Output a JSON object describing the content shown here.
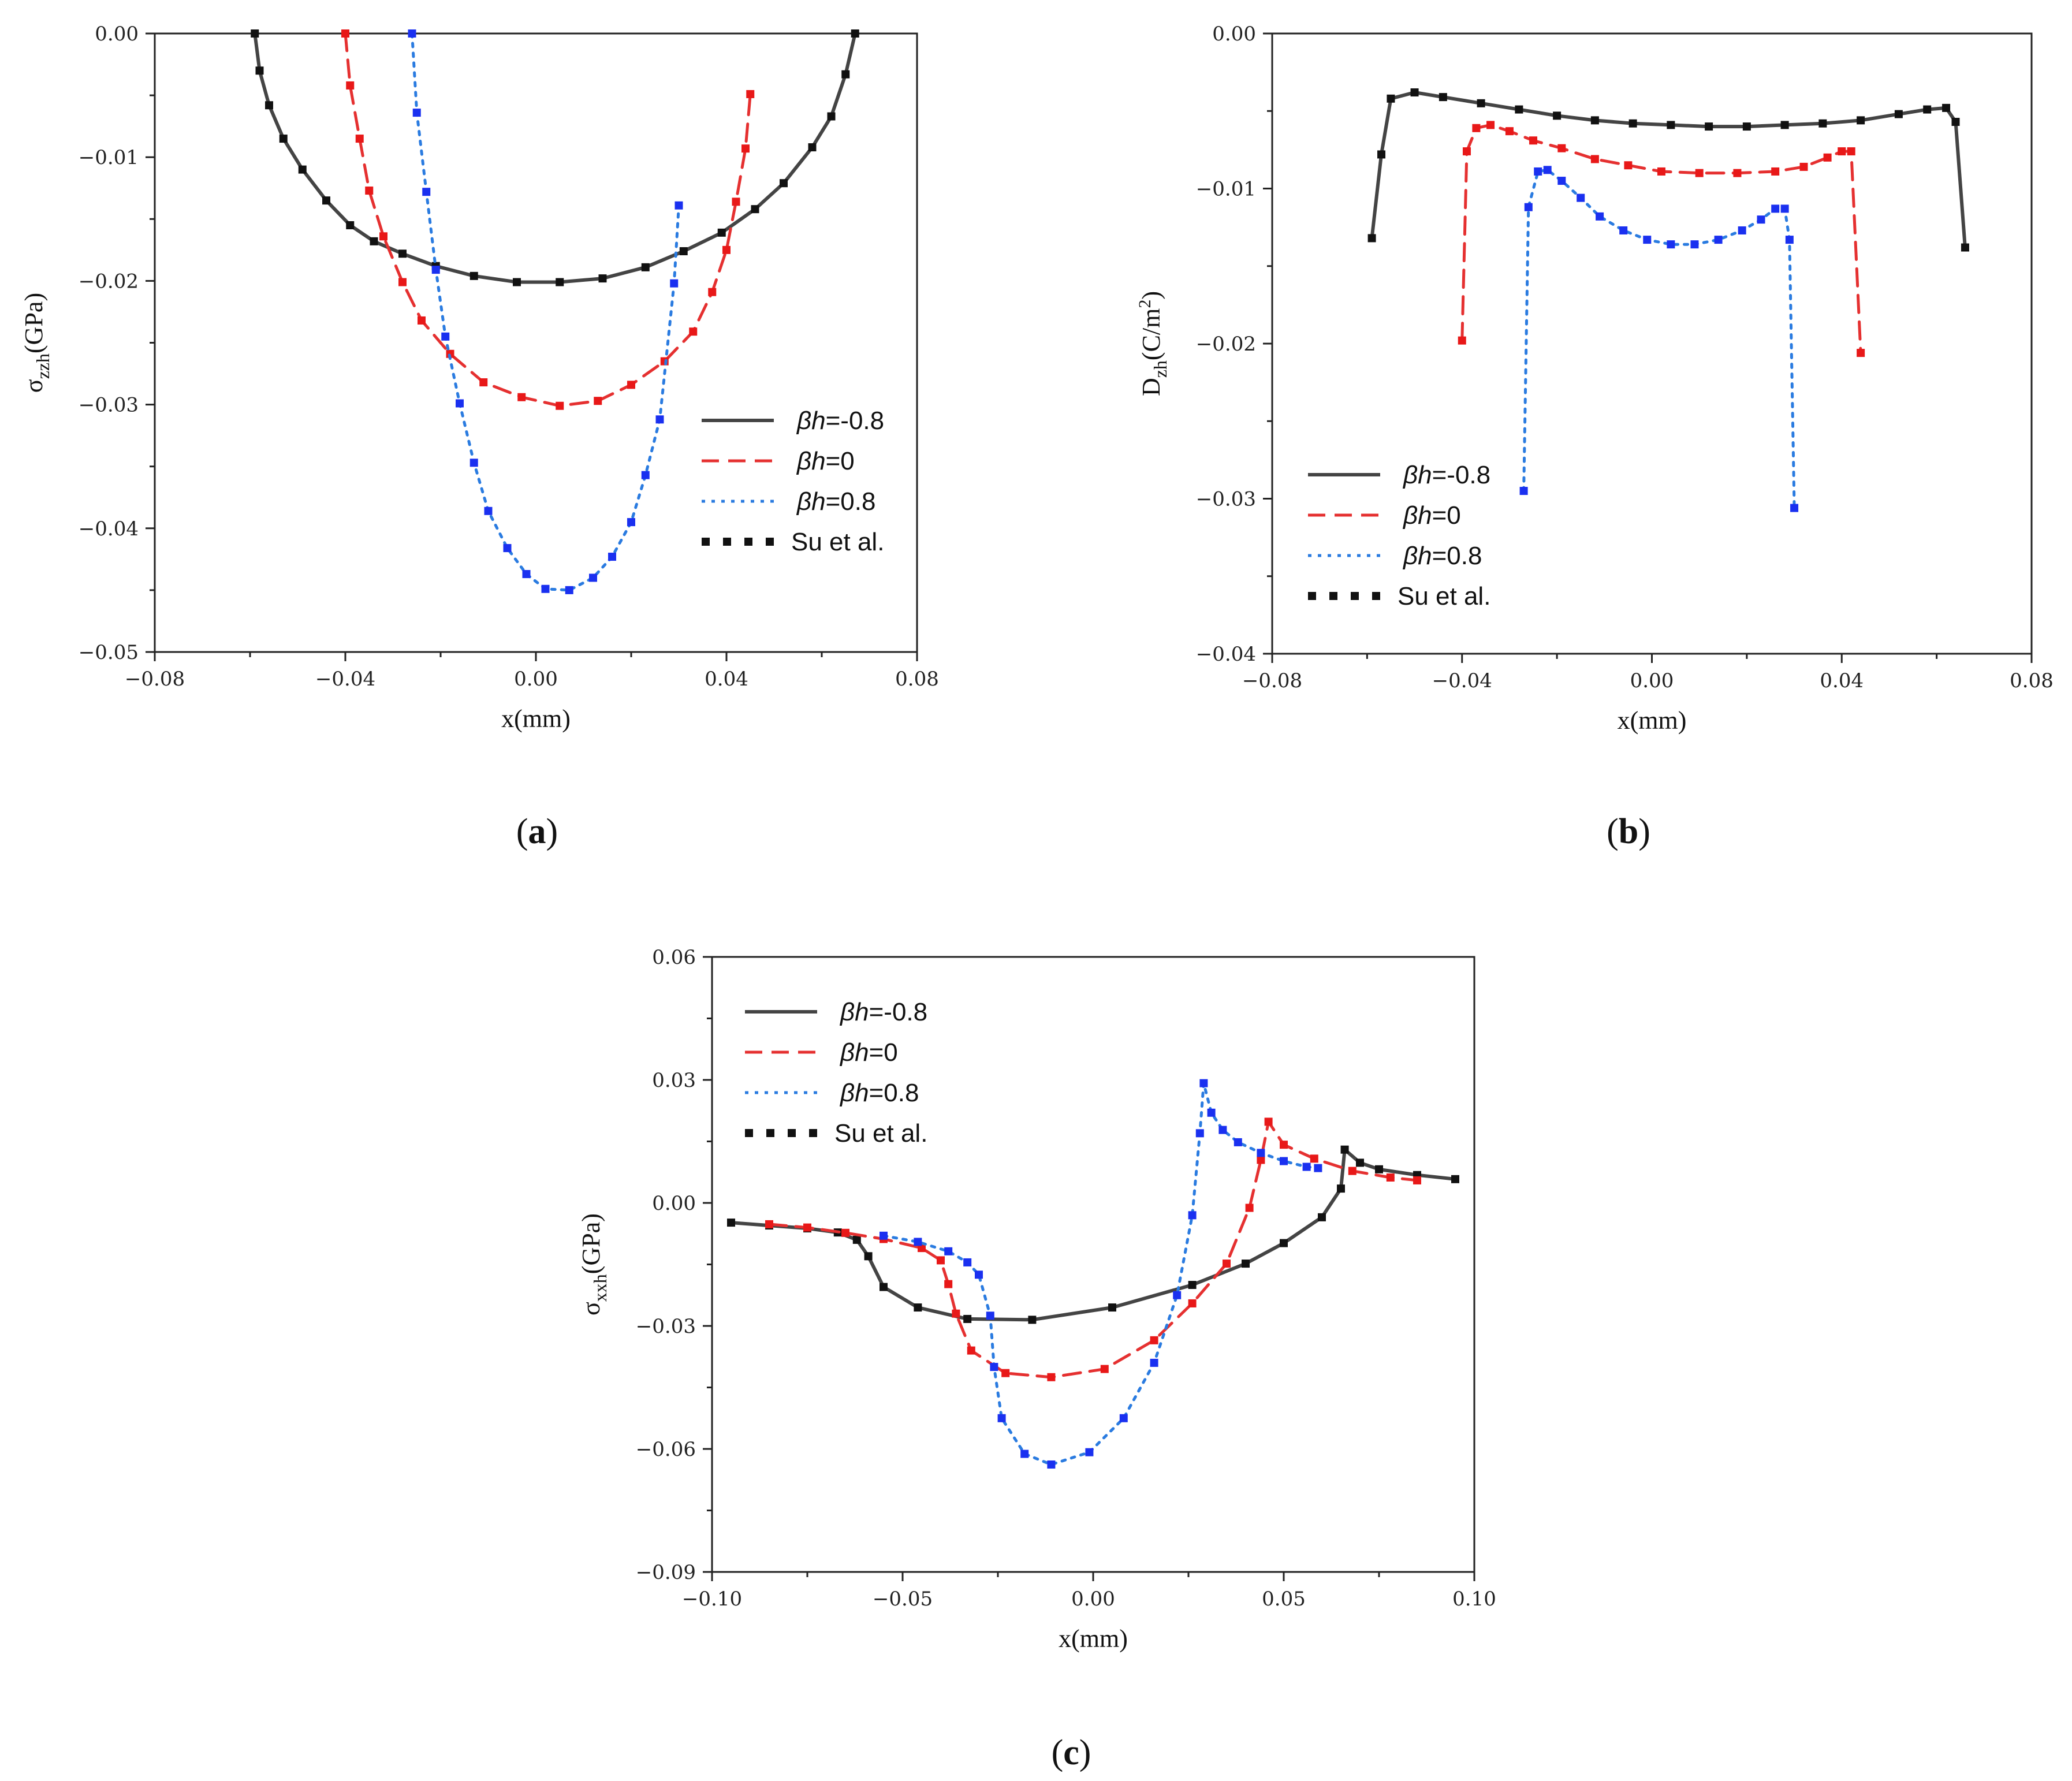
{
  "chart_data": [
    {
      "type": "line",
      "panel": "(a)",
      "caption_open": "(",
      "caption_letter": "a",
      "caption_close": ")",
      "ylabel_main": "σ",
      "ylabel_sub": "zzh",
      "ylabel_unit": "(GPa)",
      "xlabel": "x(mm)",
      "xlim": [
        -0.08,
        0.08
      ],
      "ylim": [
        -0.05,
        0.0
      ],
      "xticks": [
        -0.08,
        -0.04,
        0.0,
        0.04,
        0.08
      ],
      "xtick_labels": [
        "−0.08",
        "−0.04",
        "0.00",
        "0.04",
        "0.08"
      ],
      "yticks": [
        0.0,
        -0.01,
        -0.02,
        -0.03,
        -0.04,
        -0.05
      ],
      "ytick_labels": [
        "0.00",
        "−0.01",
        "−0.02",
        "−0.03",
        "−0.04",
        "−0.05"
      ],
      "legend_position": "right",
      "series": [
        {
          "name_italic": "βh",
          "name_rest": "=-0.8",
          "style": "solid",
          "color": "#444444",
          "x": [
            -0.059,
            -0.058,
            -0.056,
            -0.053,
            -0.049,
            -0.044,
            -0.039,
            -0.034,
            -0.028,
            -0.021,
            -0.013,
            -0.004,
            0.005,
            0.014,
            0.023,
            0.031,
            0.039,
            0.046,
            0.052,
            0.058,
            0.062,
            0.065,
            0.067
          ],
          "y": [
            0.0,
            -0.003,
            -0.0058,
            -0.0085,
            -0.011,
            -0.0135,
            -0.0155,
            -0.0168,
            -0.0178,
            -0.0188,
            -0.0196,
            -0.0201,
            -0.0201,
            -0.0198,
            -0.0189,
            -0.0176,
            -0.0161,
            -0.0142,
            -0.0121,
            -0.0092,
            -0.0067,
            -0.0033,
            0.0
          ]
        },
        {
          "name_italic": "βh",
          "name_rest": "=0",
          "style": "dash",
          "color": "#e53030",
          "x": [
            -0.04,
            -0.039,
            -0.037,
            -0.035,
            -0.032,
            -0.028,
            -0.024,
            -0.018,
            -0.011,
            -0.003,
            0.005,
            0.013,
            0.02,
            0.027,
            0.033,
            0.037,
            0.04,
            0.042,
            0.044,
            0.045
          ],
          "y": [
            0.0,
            -0.0042,
            -0.0085,
            -0.0127,
            -0.0164,
            -0.0201,
            -0.0232,
            -0.0259,
            -0.0282,
            -0.0294,
            -0.0301,
            -0.0297,
            -0.0284,
            -0.0265,
            -0.0241,
            -0.0209,
            -0.0175,
            -0.0136,
            -0.0093,
            -0.0049
          ]
        },
        {
          "name_italic": "βh",
          "name_rest": "=0.8",
          "style": "dot",
          "color": "#2a7be0",
          "x": [
            -0.026,
            -0.025,
            -0.023,
            -0.021,
            -0.019,
            -0.016,
            -0.013,
            -0.01,
            -0.006,
            -0.002,
            0.002,
            0.007,
            0.012,
            0.016,
            0.02,
            0.023,
            0.026,
            0.029,
            0.03
          ],
          "y": [
            0.0,
            -0.0064,
            -0.0128,
            -0.0191,
            -0.0245,
            -0.0299,
            -0.0347,
            -0.0386,
            -0.0416,
            -0.0437,
            -0.0449,
            -0.045,
            -0.044,
            -0.0423,
            -0.0395,
            -0.0357,
            -0.0312,
            -0.0202,
            -0.0139
          ]
        },
        {
          "name": "Su et al.",
          "style": "markers",
          "color": "#111111"
        }
      ]
    },
    {
      "type": "line",
      "panel": "(b)",
      "caption_open": "(",
      "caption_letter": "b",
      "caption_close": ")",
      "ylabel_main": "D",
      "ylabel_sub": "zh",
      "ylabel_unit": "(C/m",
      "ylabel_sup": "2",
      "ylabel_end": ")",
      "xlabel": "x(mm)",
      "xlim": [
        -0.08,
        0.08
      ],
      "ylim": [
        -0.04,
        0.0
      ],
      "xticks": [
        -0.08,
        -0.04,
        0.0,
        0.04,
        0.08
      ],
      "xtick_labels": [
        "−0.08",
        "−0.04",
        "0.00",
        "0.04",
        "0.08"
      ],
      "yticks": [
        0.0,
        -0.01,
        -0.02,
        -0.03,
        -0.04
      ],
      "ytick_labels": [
        "0.00",
        "−0.01",
        "−0.02",
        "−0.03",
        "−0.04"
      ],
      "legend_position": "left",
      "series": [
        {
          "name_italic": "βh",
          "name_rest": "=-0.8",
          "style": "solid",
          "color": "#444444",
          "x": [
            -0.059,
            -0.057,
            -0.055,
            -0.05,
            -0.044,
            -0.036,
            -0.028,
            -0.02,
            -0.012,
            -0.004,
            0.004,
            0.012,
            0.02,
            0.028,
            0.036,
            0.044,
            0.052,
            0.058,
            0.062,
            0.064,
            0.066
          ],
          "y": [
            -0.0132,
            -0.0078,
            -0.0042,
            -0.0038,
            -0.0041,
            -0.0045,
            -0.0049,
            -0.0053,
            -0.0056,
            -0.0058,
            -0.0059,
            -0.006,
            -0.006,
            -0.0059,
            -0.0058,
            -0.0056,
            -0.0052,
            -0.0049,
            -0.0048,
            -0.0057,
            -0.0138
          ]
        },
        {
          "name_italic": "βh",
          "name_rest": "=0",
          "style": "dash",
          "color": "#e53030",
          "x": [
            -0.04,
            -0.039,
            -0.037,
            -0.034,
            -0.03,
            -0.025,
            -0.019,
            -0.012,
            -0.005,
            0.002,
            0.01,
            0.018,
            0.026,
            0.032,
            0.037,
            0.04,
            0.042,
            0.044
          ],
          "y": [
            -0.0198,
            -0.0076,
            -0.0061,
            -0.0059,
            -0.0063,
            -0.0069,
            -0.0074,
            -0.0081,
            -0.0085,
            -0.0089,
            -0.009,
            -0.009,
            -0.0089,
            -0.0086,
            -0.008,
            -0.0076,
            -0.0076,
            -0.0206
          ]
        },
        {
          "name_italic": "βh",
          "name_rest": "=0.8",
          "style": "dot",
          "color": "#2a7be0",
          "x": [
            -0.027,
            -0.026,
            -0.024,
            -0.022,
            -0.019,
            -0.015,
            -0.011,
            -0.006,
            -0.001,
            0.004,
            0.009,
            0.014,
            0.019,
            0.023,
            0.026,
            0.028,
            0.029,
            0.03
          ],
          "y": [
            -0.0295,
            -0.0112,
            -0.0089,
            -0.0088,
            -0.0095,
            -0.0106,
            -0.0118,
            -0.0127,
            -0.0133,
            -0.0136,
            -0.0136,
            -0.0133,
            -0.0127,
            -0.012,
            -0.0113,
            -0.0113,
            -0.0133,
            -0.0306
          ]
        },
        {
          "name": "Su et al.",
          "style": "markers",
          "color": "#111111"
        }
      ]
    },
    {
      "type": "line",
      "panel": "(c)",
      "caption_open": "(",
      "caption_letter": "c",
      "caption_close": ")",
      "ylabel_main": "σ",
      "ylabel_sub": "xxh",
      "ylabel_unit": "(GPa)",
      "xlabel": "x(mm)",
      "xlim": [
        -0.1,
        0.1
      ],
      "ylim": [
        -0.09,
        0.06
      ],
      "xticks": [
        -0.1,
        -0.05,
        0.0,
        0.05,
        0.1
      ],
      "xtick_labels": [
        "−0.10",
        "−0.05",
        "0.00",
        "0.05",
        "0.10"
      ],
      "yticks": [
        0.06,
        0.03,
        0.0,
        -0.03,
        -0.06,
        -0.09
      ],
      "ytick_labels": [
        "0.06",
        "0.03",
        "0.00",
        "−0.03",
        "−0.06",
        "−0.09"
      ],
      "legend_position": "top-left",
      "series": [
        {
          "name_italic": "βh",
          "name_rest": "=-0.8",
          "style": "solid",
          "color": "#444444",
          "x": [
            -0.095,
            -0.085,
            -0.075,
            -0.067,
            -0.062,
            -0.059,
            -0.055,
            -0.046,
            -0.033,
            -0.016,
            0.005,
            0.026,
            0.04,
            0.05,
            0.06,
            0.065,
            0.066,
            0.07,
            0.075,
            0.085,
            0.095
          ],
          "y": [
            -0.0048,
            -0.0055,
            -0.0062,
            -0.0072,
            -0.009,
            -0.013,
            -0.0205,
            -0.0255,
            -0.0283,
            -0.0285,
            -0.0255,
            -0.02,
            -0.0148,
            -0.0098,
            -0.0035,
            0.0035,
            0.013,
            0.0098,
            0.0082,
            0.0068,
            0.0058
          ]
        },
        {
          "name_italic": "βh",
          "name_rest": "=0",
          "style": "dash",
          "color": "#e53030",
          "x": [
            -0.085,
            -0.075,
            -0.065,
            -0.055,
            -0.045,
            -0.04,
            -0.038,
            -0.036,
            -0.032,
            -0.023,
            -0.011,
            0.003,
            0.016,
            0.026,
            0.035,
            0.041,
            0.044,
            0.046,
            0.05,
            0.058,
            0.068,
            0.078,
            0.085
          ],
          "y": [
            -0.0052,
            -0.006,
            -0.0073,
            -0.0088,
            -0.011,
            -0.014,
            -0.0198,
            -0.027,
            -0.036,
            -0.0415,
            -0.0425,
            -0.0405,
            -0.0335,
            -0.0245,
            -0.0148,
            -0.0012,
            0.0105,
            0.0198,
            0.0142,
            0.0108,
            0.0078,
            0.0062,
            0.0055
          ]
        },
        {
          "name_italic": "βh",
          "name_rest": "=0.8",
          "style": "dot",
          "color": "#2a7be0",
          "x": [
            -0.055,
            -0.046,
            -0.038,
            -0.033,
            -0.03,
            -0.027,
            -0.026,
            -0.024,
            -0.018,
            -0.011,
            -0.001,
            0.008,
            0.016,
            0.022,
            0.026,
            0.028,
            0.029,
            0.031,
            0.034,
            0.038,
            0.044,
            0.05,
            0.056,
            0.059
          ],
          "y": [
            -0.008,
            -0.0095,
            -0.0118,
            -0.0145,
            -0.0175,
            -0.0275,
            -0.04,
            -0.0525,
            -0.0612,
            -0.0638,
            -0.0608,
            -0.0525,
            -0.039,
            -0.0225,
            -0.003,
            0.017,
            0.0292,
            0.022,
            0.0178,
            0.0148,
            0.0122,
            0.0102,
            0.0088,
            0.0085
          ]
        },
        {
          "name": "Su et al.",
          "style": "markers",
          "color": "#111111"
        }
      ]
    }
  ]
}
